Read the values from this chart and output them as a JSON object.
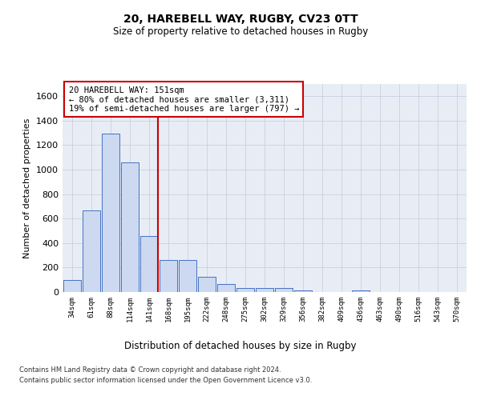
{
  "title": "20, HAREBELL WAY, RUGBY, CV23 0TT",
  "subtitle": "Size of property relative to detached houses in Rugby",
  "xlabel": "Distribution of detached houses by size in Rugby",
  "ylabel": "Number of detached properties",
  "categories": [
    "34sqm",
    "61sqm",
    "88sqm",
    "114sqm",
    "141sqm",
    "168sqm",
    "195sqm",
    "222sqm",
    "248sqm",
    "275sqm",
    "302sqm",
    "329sqm",
    "356sqm",
    "382sqm",
    "409sqm",
    "436sqm",
    "463sqm",
    "490sqm",
    "516sqm",
    "543sqm",
    "570sqm"
  ],
  "values": [
    95,
    665,
    1295,
    1060,
    460,
    260,
    260,
    125,
    65,
    30,
    30,
    30,
    10,
    0,
    0,
    10,
    0,
    0,
    0,
    0,
    0
  ],
  "bar_color": "#ccd9f0",
  "bar_edge_color": "#4472c4",
  "vline_color": "#cc0000",
  "annotation_text": "20 HAREBELL WAY: 151sqm\n← 80% of detached houses are smaller (3,311)\n19% of semi-detached houses are larger (797) →",
  "annotation_box_color": "#ffffff",
  "annotation_box_edge_color": "#cc0000",
  "ylim": [
    0,
    1700
  ],
  "yticks": [
    0,
    200,
    400,
    600,
    800,
    1000,
    1200,
    1400,
    1600
  ],
  "grid_color": "#c8d0e0",
  "footer_line1": "Contains HM Land Registry data © Crown copyright and database right 2024.",
  "footer_line2": "Contains public sector information licensed under the Open Government Licence v3.0.",
  "bg_color": "#e8edf5",
  "vline_pos": 4.47
}
